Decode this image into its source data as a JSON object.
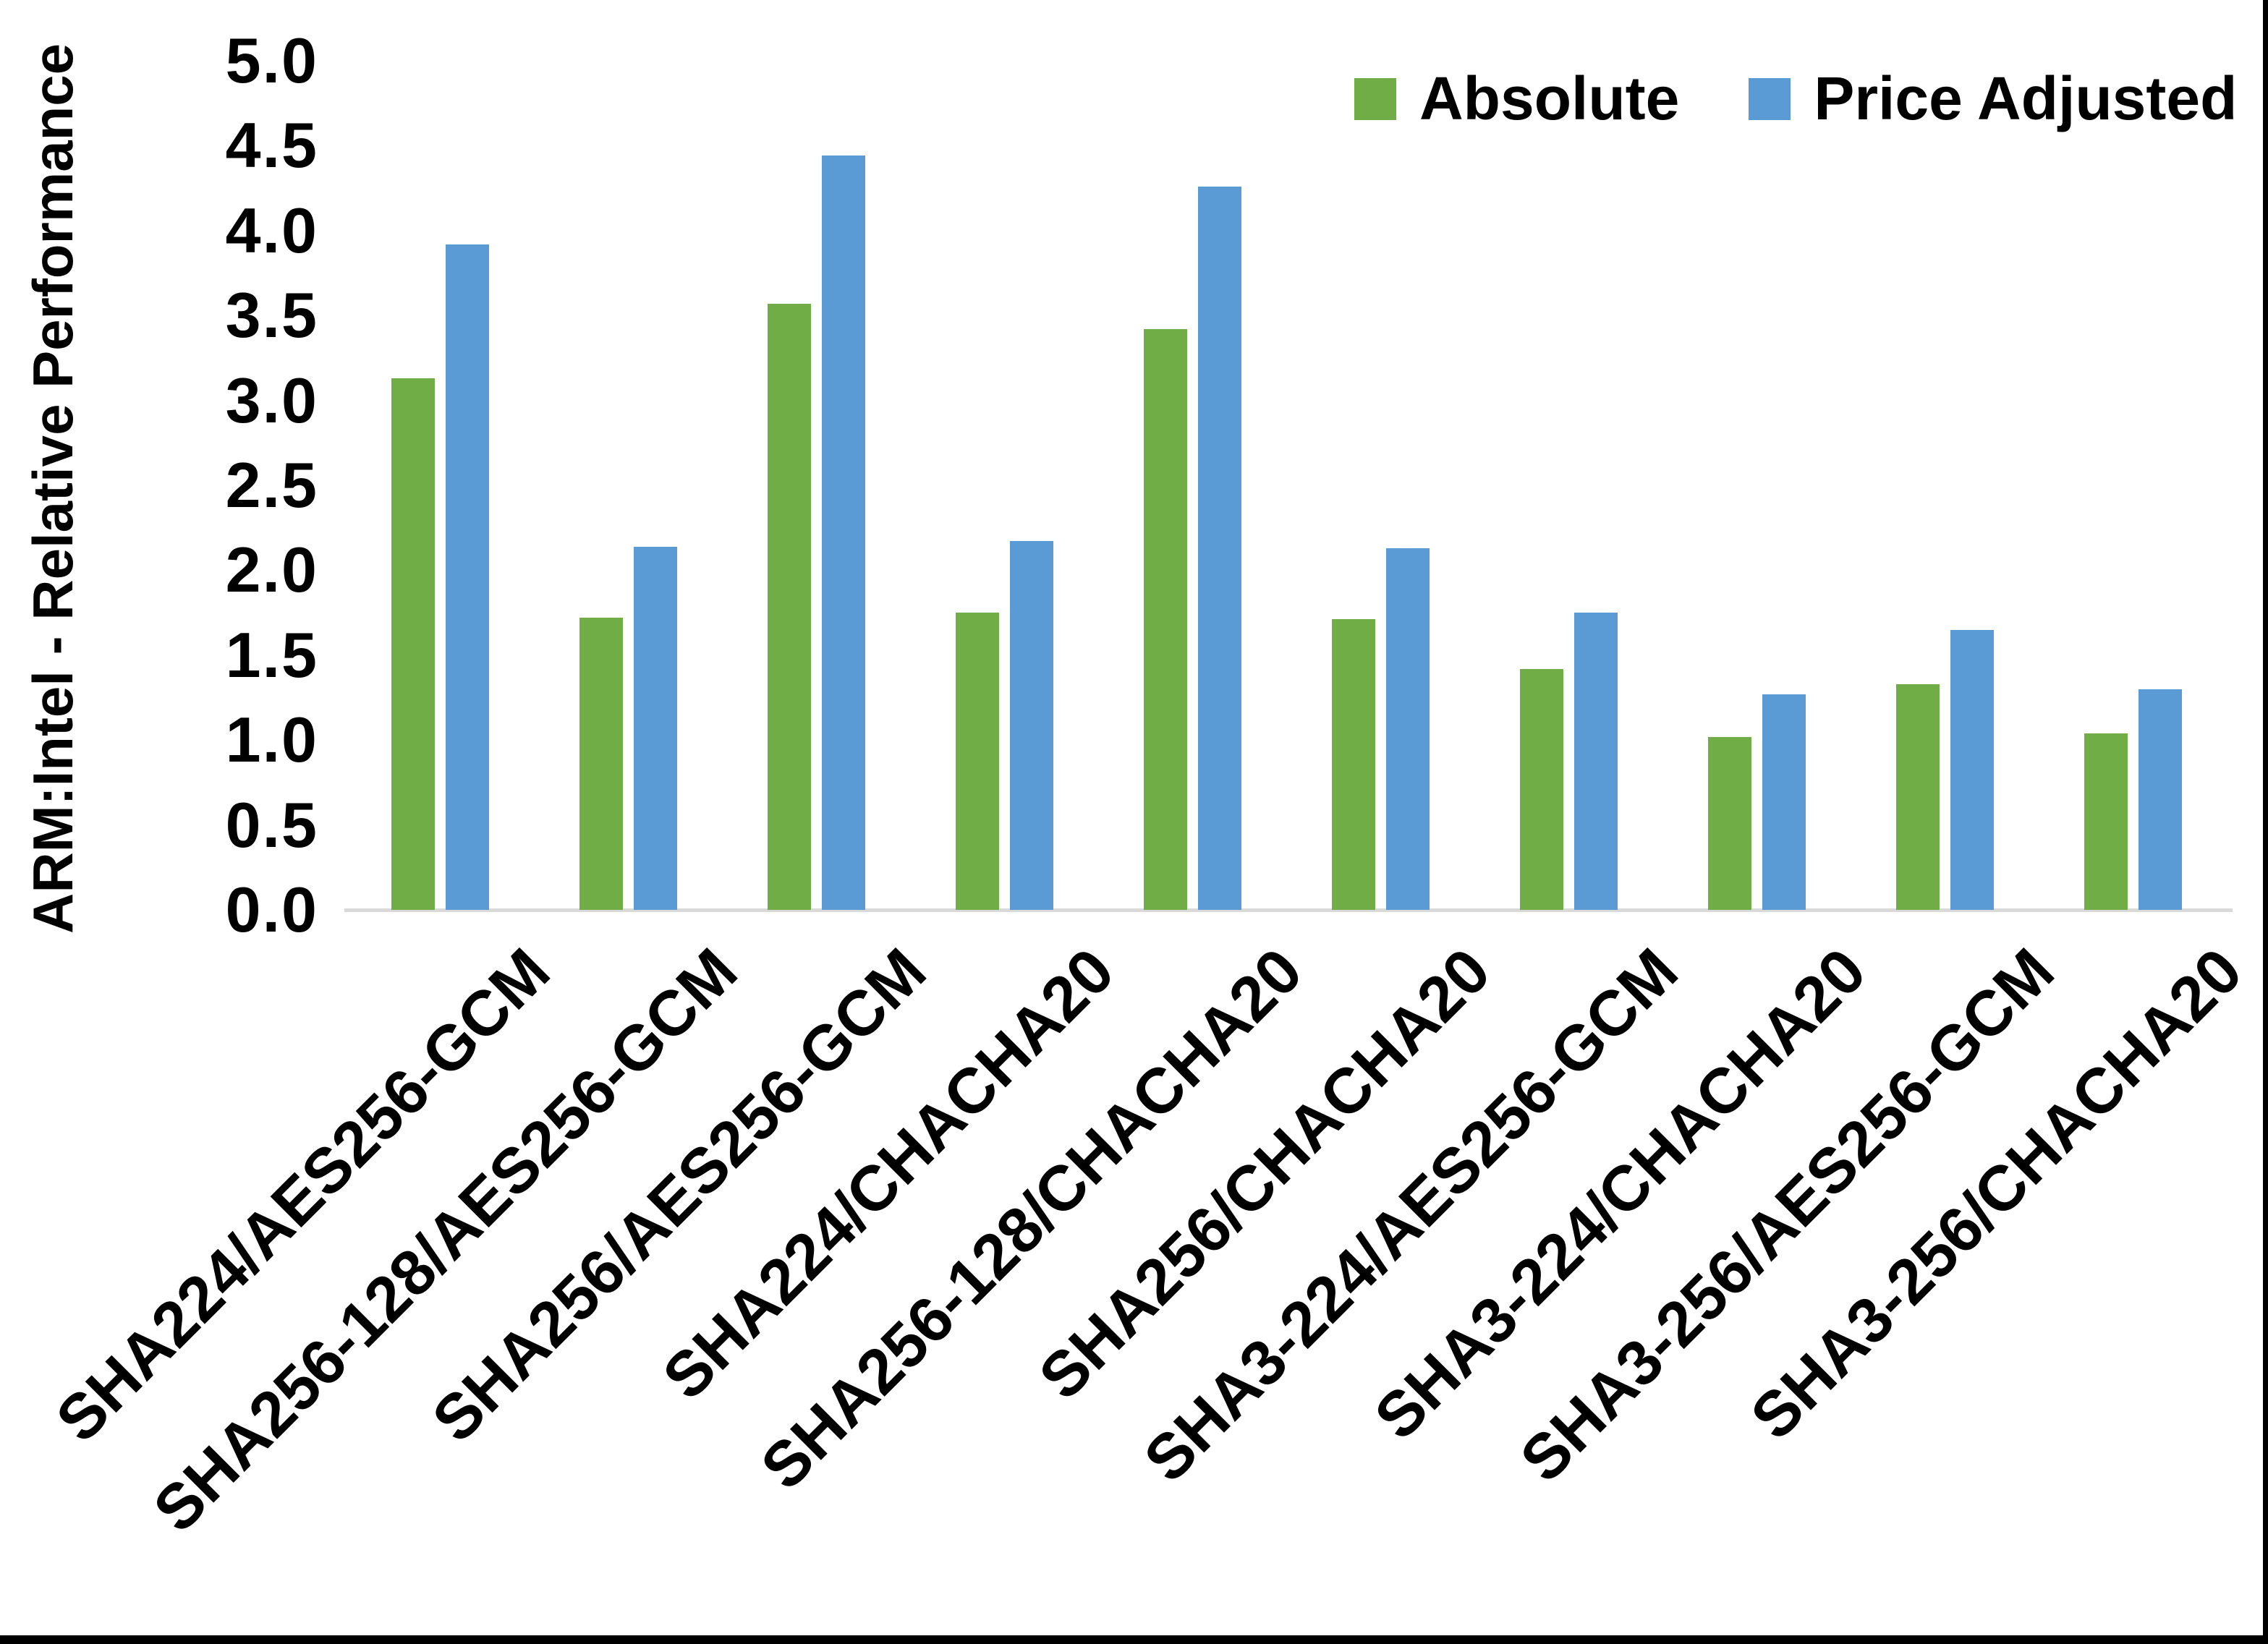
{
  "chart_data": {
    "type": "bar",
    "title": "",
    "xlabel": "",
    "ylabel": "ARM:Intel - Relative Performance",
    "ylim": [
      0,
      5
    ],
    "ytick_step": 0.5,
    "ytick_labels": [
      "5.0",
      "4.5",
      "4.0",
      "3.5",
      "3.0",
      "2.5",
      "2.0",
      "1.5",
      "1.0",
      "0.5",
      "0.0"
    ],
    "grid": false,
    "axis_line_color": "#d9d9d9",
    "legend_position": "top-right",
    "categories": [
      "SHA224/AES256-GCM",
      "SHA256-128/AES256-GCM",
      "SHA256/AES256-GCM",
      "SHA224/CHACHA20",
      "SHA256-128/CHACHA20",
      "SHA256/CHACHA20",
      "SHA3-224/AES256-GCM",
      "SHA3-224/CHACHA20",
      "SHA3-256/AES256-GCM",
      "SHA3-256/CHACHA20"
    ],
    "series": [
      {
        "name": "Absolute",
        "color": "#70AD47",
        "values": [
          3.13,
          1.72,
          3.57,
          1.75,
          3.42,
          1.71,
          1.42,
          1.02,
          1.33,
          1.04
        ]
      },
      {
        "name": "Price Adjusted",
        "color": "#5B9BD5",
        "values": [
          3.92,
          2.14,
          4.44,
          2.17,
          4.26,
          2.13,
          1.75,
          1.27,
          1.65,
          1.3
        ]
      }
    ]
  },
  "frame": {
    "border_color": "#000000"
  }
}
